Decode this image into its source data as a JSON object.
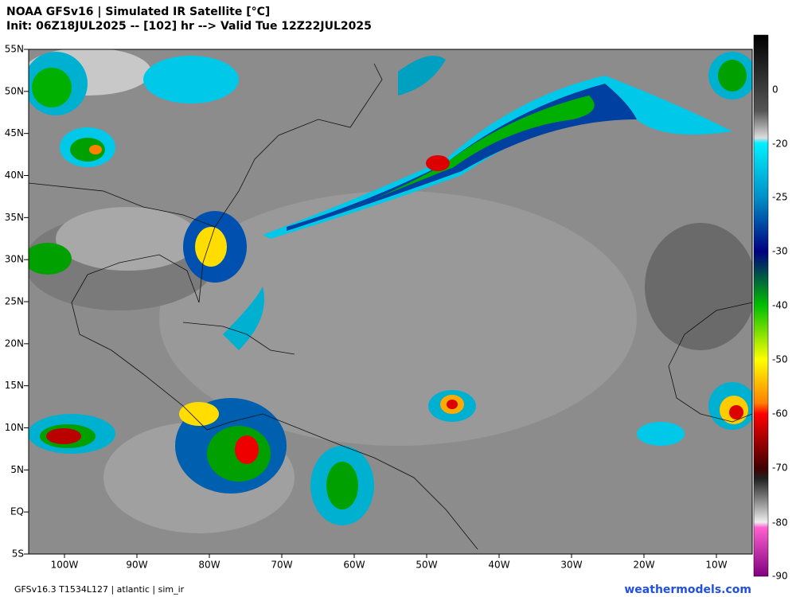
{
  "header": {
    "title": "NOAA GFSv16 | Simulated IR Satellite [°C]",
    "subtitle": "Init: 06Z18JUL2025 -- [102] hr --> Valid Tue 12Z22JUL2025"
  },
  "map": {
    "lat_labels": [
      "55N",
      "50N",
      "45N",
      "40N",
      "35N",
      "30N",
      "25N",
      "20N",
      "15N",
      "10N",
      "5N",
      "EQ",
      "5S"
    ],
    "lon_labels": [
      "100W",
      "90W",
      "80W",
      "70W",
      "60W",
      "50W",
      "40W",
      "30W",
      "20W",
      "10W"
    ]
  },
  "colorbar": {
    "ticks": [
      0,
      -20,
      -25,
      -30,
      -40,
      -50,
      -60,
      -70,
      -80,
      -90
    ]
  },
  "footer": {
    "left": "GFSv16.3 T1534L127 | atlantic | sim_ir",
    "right": "weathermodels.com"
  }
}
